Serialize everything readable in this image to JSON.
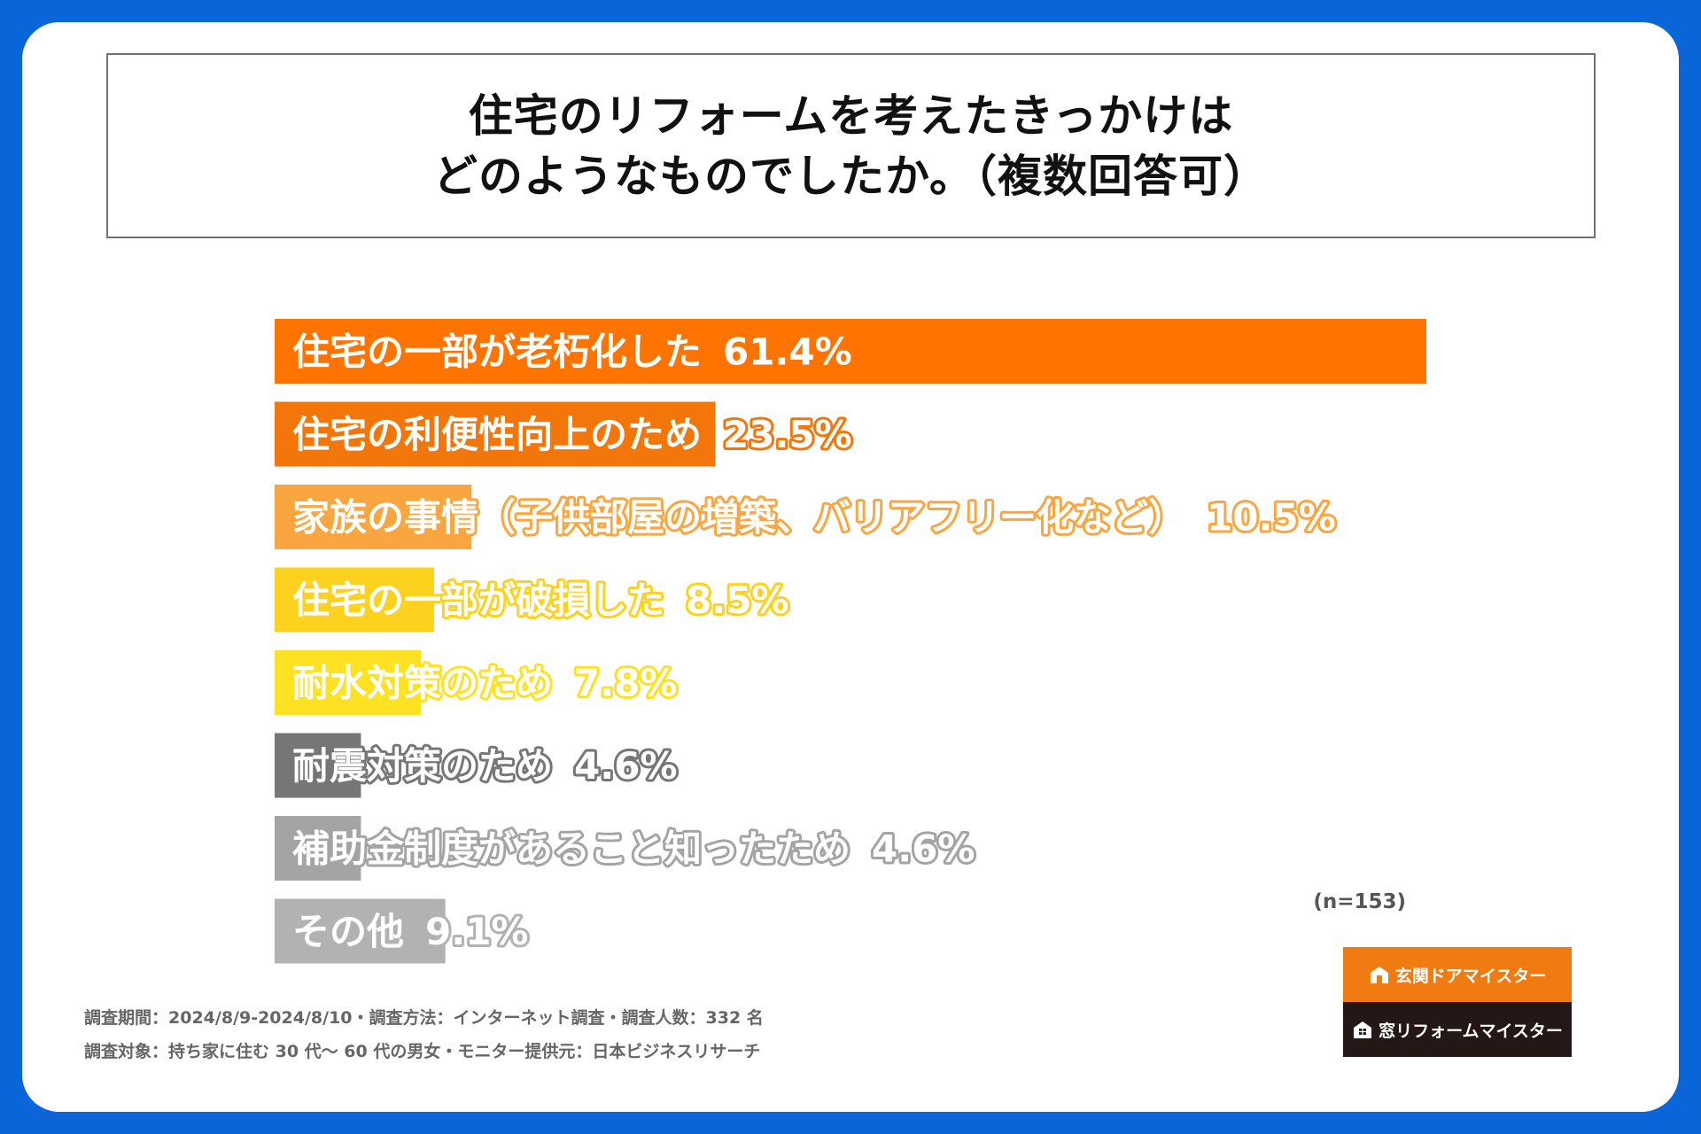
{
  "title": {
    "line1": "住宅のリフォームを考えたきっかけは",
    "line2": "どのようなものでしたか。（複数回答可）"
  },
  "chart_data": {
    "type": "bar",
    "orientation": "horizontal",
    "title": "住宅のリフォームを考えたきっかけは どのようなものでしたか。（複数回答可）",
    "categories": [
      "住宅の一部が老朽化した",
      "住宅の利便性向上のため",
      "家族の事情（子供部屋の増築、バリアフリー化など）",
      "住宅の一部が破損した",
      "耐水対策のため",
      "耐震対策のため",
      "補助金制度があること知ったため",
      "その他"
    ],
    "values": [
      61.4,
      23.5,
      10.5,
      8.5,
      7.8,
      4.6,
      4.6,
      9.1
    ],
    "value_labels": [
      "61.4%",
      "23.5%",
      "10.5%",
      "8.5%",
      "7.8%",
      "4.6%",
      "4.6%",
      "9.1%"
    ],
    "colors": [
      "#ff7300",
      "#f2760a",
      "#f9a640",
      "#fcd21e",
      "#fde123",
      "#767676",
      "#a4a4a4",
      "#b2b2b2"
    ],
    "text_outline_colors": [
      "#ff7300",
      "#f2760a",
      "#f9a640",
      "#fcd21e",
      "#fde123",
      "#767676",
      "#a4a4a4",
      "#b2b2b2"
    ],
    "xlim": [
      0,
      61.4
    ],
    "grid": false,
    "legend": "none"
  },
  "note": "(n=153)",
  "footer": {
    "line1": "調査期間：2024/8/9-2024/8/10・調査方法：インターネット調査・調査人数：332 名",
    "line2": "調査対象：持ち家に住む 30 代～ 60 代の男女・モニター提供元：日本ビジネスリサーチ"
  },
  "logos": {
    "door": "玄関ドアマイスター",
    "window": "窓リフォームマイスター",
    "door_color": "#f07b10",
    "window_color": "#231815"
  }
}
